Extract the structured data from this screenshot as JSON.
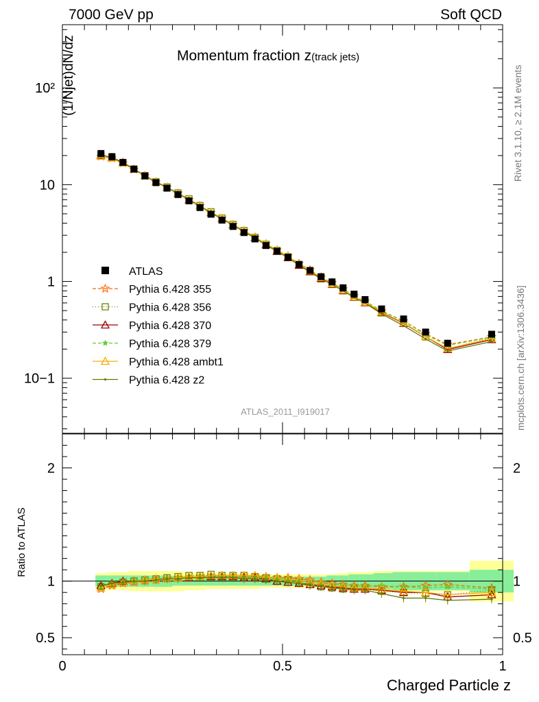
{
  "header": {
    "left": "7000 GeV pp",
    "right": "Soft QCD"
  },
  "side_text": {
    "rivet": "Rivet 3.1.10, ≥ 2.1M events",
    "mcplots": "mcplots.cern.ch [arXiv:1306.3436]"
  },
  "chart_data": {
    "type": "scatter",
    "title": "Momentum fraction z",
    "title_sub": "(track jets)",
    "watermark": "ATLAS_2011_I919017",
    "xlabel": "Charged Particle z",
    "ylabel_main": "(1/Njet)dN/dz",
    "ylabel_ratio": "Ratio to ATLAS",
    "xlim": [
      0,
      1
    ],
    "ylim_main": [
      0.027,
      450
    ],
    "ylim_ratio": [
      0.35,
      2.3
    ],
    "yscale_main": "log",
    "x_ticks": [
      "0",
      "0.5",
      "1"
    ],
    "y_ticks_main": [
      "10−1",
      "1",
      "10",
      "10²"
    ],
    "y_ticks_ratio": [
      "0.5",
      "1",
      "2"
    ],
    "legend_position": "left-middle",
    "x": [
      0.0875,
      0.1125,
      0.1375,
      0.1625,
      0.1875,
      0.2125,
      0.2375,
      0.2625,
      0.2875,
      0.3125,
      0.3375,
      0.3625,
      0.3875,
      0.4125,
      0.4375,
      0.4625,
      0.4875,
      0.5125,
      0.5375,
      0.5625,
      0.5875,
      0.6125,
      0.6375,
      0.6625,
      0.6875,
      0.725,
      0.775,
      0.825,
      0.875,
      0.975
    ],
    "atlas": [
      21,
      19.5,
      17,
      14.5,
      12.3,
      10.5,
      9.2,
      7.9,
      6.8,
      5.8,
      4.95,
      4.3,
      3.7,
      3.2,
      2.75,
      2.35,
      2.05,
      1.78,
      1.5,
      1.3,
      1.12,
      0.99,
      0.86,
      0.74,
      0.65,
      0.52,
      0.41,
      0.3,
      0.23,
      0.285
    ],
    "band_inner": [
      0.05,
      0.05,
      0.05,
      0.05,
      0.05,
      0.05,
      0.05,
      0.04,
      0.04,
      0.04,
      0.04,
      0.04,
      0.04,
      0.04,
      0.04,
      0.04,
      0.04,
      0.04,
      0.04,
      0.04,
      0.04,
      0.05,
      0.05,
      0.06,
      0.06,
      0.07,
      0.08,
      0.08,
      0.08,
      0.1
    ],
    "band_outer": [
      0.07,
      0.08,
      0.08,
      0.09,
      0.09,
      0.09,
      0.09,
      0.09,
      0.08,
      0.08,
      0.07,
      0.07,
      0.07,
      0.07,
      0.07,
      0.06,
      0.06,
      0.06,
      0.06,
      0.06,
      0.06,
      0.06,
      0.07,
      0.08,
      0.08,
      0.09,
      0.09,
      0.09,
      0.09,
      0.18
    ],
    "series": [
      {
        "name": "Pythia 6.428 355",
        "color": "#ff6600",
        "dash": "5,3",
        "marker": "star-open",
        "ratio": [
          0.93,
          0.96,
          0.98,
          0.99,
          1.0,
          1.01,
          1.02,
          1.03,
          1.03,
          1.04,
          1.04,
          1.04,
          1.04,
          1.04,
          1.04,
          1.04,
          1.03,
          1.03,
          1.02,
          1.01,
          0.99,
          0.98,
          0.97,
          0.96,
          0.96,
          0.95,
          0.95,
          0.96,
          0.97,
          0.94
        ]
      },
      {
        "name": "Pythia 6.428 356",
        "color": "#668800",
        "dash": "1,3",
        "marker": "square-open",
        "ratio": [
          0.95,
          0.97,
          0.99,
          1.0,
          1.01,
          1.02,
          1.03,
          1.04,
          1.05,
          1.05,
          1.06,
          1.05,
          1.05,
          1.05,
          1.04,
          1.03,
          1.02,
          1.01,
          0.99,
          0.97,
          0.95,
          0.94,
          0.93,
          0.93,
          0.93,
          0.91,
          0.9,
          0.89,
          0.88,
          0.92
        ]
      },
      {
        "name": "Pythia 6.428 370",
        "color": "#990000",
        "dash": "",
        "marker": "triangle-open",
        "ratio": [
          0.96,
          0.98,
          1.0,
          1.0,
          1.01,
          1.02,
          1.02,
          1.03,
          1.03,
          1.04,
          1.04,
          1.04,
          1.04,
          1.03,
          1.03,
          1.02,
          1.0,
          0.99,
          0.98,
          0.97,
          0.96,
          0.95,
          0.94,
          0.93,
          0.93,
          0.92,
          0.9,
          0.9,
          0.86,
          0.88
        ]
      },
      {
        "name": "Pythia 6.428 379",
        "color": "#66cc33",
        "dash": "5,3",
        "marker": "star-filled",
        "ratio": [
          0.94,
          0.97,
          0.99,
          1.0,
          1.01,
          1.01,
          1.02,
          1.03,
          1.03,
          1.04,
          1.04,
          1.04,
          1.04,
          1.03,
          1.03,
          1.03,
          1.02,
          1.01,
          1.0,
          0.99,
          0.98,
          0.97,
          0.97,
          0.96,
          0.96,
          0.96,
          0.95,
          0.94,
          0.95,
          0.93
        ]
      },
      {
        "name": "Pythia 6.428 ambt1",
        "color": "#ffaa00",
        "dash": "",
        "marker": "triangle-open",
        "ratio": [
          0.94,
          0.97,
          0.99,
          1.0,
          1.01,
          1.02,
          1.02,
          1.03,
          1.04,
          1.04,
          1.05,
          1.05,
          1.05,
          1.05,
          1.05,
          1.04,
          1.03,
          1.02,
          1.01,
          0.99,
          0.98,
          0.96,
          0.95,
          0.94,
          0.94,
          0.93,
          0.91,
          0.9,
          0.88,
          0.9
        ]
      },
      {
        "name": "Pythia 6.428 z2",
        "color": "#667700",
        "dash": "",
        "marker": "dot",
        "ratio": [
          0.96,
          0.98,
          0.99,
          1.0,
          1.0,
          1.01,
          1.02,
          1.02,
          1.03,
          1.03,
          1.03,
          1.03,
          1.03,
          1.02,
          1.02,
          1.01,
          1.0,
          0.99,
          0.98,
          0.96,
          0.95,
          0.94,
          0.93,
          0.92,
          0.92,
          0.89,
          0.85,
          0.85,
          0.83,
          0.84
        ]
      }
    ]
  }
}
